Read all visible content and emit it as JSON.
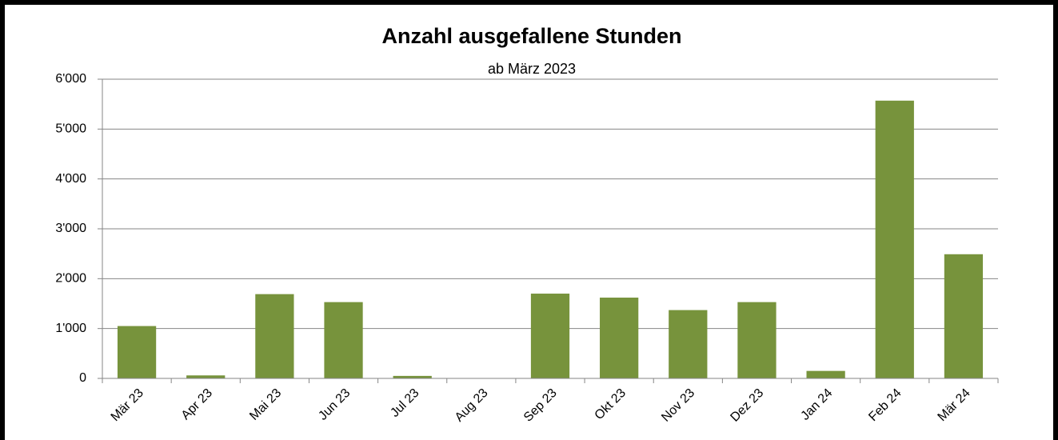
{
  "chart_data": {
    "type": "bar",
    "title": "Anzahl ausgefallene Stunden",
    "subtitle": "ab März 2023",
    "categories": [
      "Mär 23",
      "Apr 23",
      "Mai 23",
      "Jun 23",
      "Jul 23",
      "Aug 23",
      "Sep 23",
      "Okt 23",
      "Nov 23",
      "Dez 23",
      "Jan 24",
      "Feb 24",
      "Mär 24"
    ],
    "values": [
      1050,
      60,
      1690,
      1530,
      50,
      0,
      1700,
      1620,
      1370,
      1530,
      150,
      5570,
      2490
    ],
    "color": "#77933c",
    "ylim": [
      0,
      6000
    ],
    "yticks": [
      0,
      {
        "value": 1000,
        "label": "1'000"
      },
      {
        "value": 2000,
        "label": "2'000"
      },
      {
        "value": 3000,
        "label": "3'000"
      },
      {
        "value": 4000,
        "label": "4'000"
      },
      {
        "value": 5000,
        "label": "5'000"
      },
      {
        "value": 6000,
        "label": "6'000"
      }
    ],
    "grid": true
  }
}
